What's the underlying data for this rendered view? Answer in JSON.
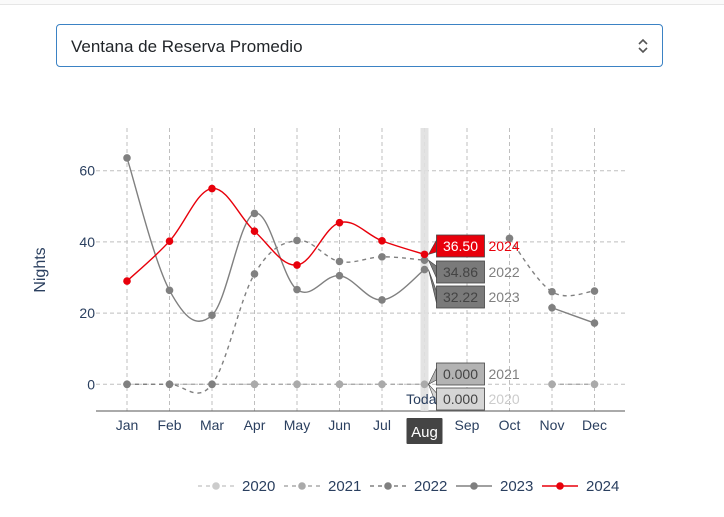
{
  "dropdown": {
    "selected": "Ventana de Reserva Promedio"
  },
  "chart_data": {
    "type": "line",
    "ylabel": "Nights",
    "xlabel": "",
    "categories": [
      "Jan",
      "Feb",
      "Mar",
      "Apr",
      "May",
      "Jun",
      "Jul",
      "Aug",
      "Sep",
      "Oct",
      "Nov",
      "Dec"
    ],
    "ylim": [
      -7.5,
      72
    ],
    "yticks": [
      0,
      20,
      40,
      60
    ],
    "grid": true,
    "legend_position": "bottom",
    "hover": {
      "category": "Aug",
      "today_label": "Toda",
      "labels": [
        {
          "series": "2024",
          "value": "36.50"
        },
        {
          "series": "2022",
          "value": "34.86"
        },
        {
          "series": "2023",
          "value": "32.22"
        },
        {
          "series": "2021",
          "value": "0.000"
        },
        {
          "series": "2020",
          "value": "0.000"
        }
      ]
    },
    "series": [
      {
        "name": "2020",
        "color": "#cccccc",
        "dash": "4,4",
        "values": [
          0,
          0,
          0,
          0,
          0,
          0,
          0,
          0,
          null,
          null,
          0,
          0
        ]
      },
      {
        "name": "2021",
        "color": "#aaaaaa",
        "dash": "4,4",
        "values": [
          0,
          0,
          0,
          0,
          0,
          0,
          0,
          0,
          null,
          null,
          0,
          0
        ]
      },
      {
        "name": "2022",
        "color": "#808080",
        "dash": "4,4",
        "values": [
          0,
          0,
          0,
          31,
          40.4,
          34.5,
          35.8,
          34.86,
          null,
          41,
          26,
          26.2
        ]
      },
      {
        "name": "2023",
        "color": "#808080",
        "dash": "",
        "values": [
          63.6,
          26.4,
          19.4,
          48,
          26.6,
          30.5,
          23.7,
          32.22,
          null,
          null,
          21.5,
          17.2
        ]
      },
      {
        "name": "2024",
        "color": "#e8000b",
        "dash": "",
        "values": [
          29,
          40.2,
          55,
          43,
          33.5,
          45.4,
          40.3,
          36.5,
          null,
          null,
          null,
          null
        ]
      }
    ]
  },
  "colors": {
    "accent_2024": "#e8000b",
    "grid": "#bfbfbf",
    "select_border": "#3b82c4"
  }
}
